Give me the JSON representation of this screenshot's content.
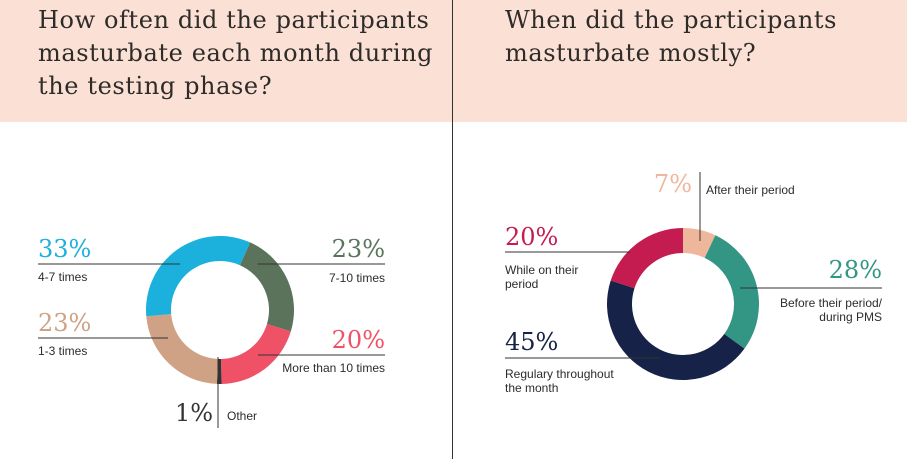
{
  "colors": {
    "band": "#fbe0d5",
    "text": "#2e2b29",
    "blue": "#1cb0dc",
    "green": "#5a735a",
    "pink": "#ef5267",
    "tan": "#cfa286",
    "dark": "#333333",
    "peach": "#eeb79c",
    "teal": "#339584",
    "navy": "#172248",
    "crimson": "#c41c50"
  },
  "chart_data": [
    {
      "type": "pie",
      "donut": true,
      "title": "How often did the participants masturbate each month during the testing phase?",
      "slices": [
        {
          "label": "7-10 times",
          "value": 23,
          "display": "23%"
        },
        {
          "label": "More than 10 times",
          "value": 20,
          "display": "20%"
        },
        {
          "label": "Other",
          "value": 1,
          "display": "1%"
        },
        {
          "label": "1-3 times",
          "value": 23,
          "display": "23%"
        },
        {
          "label": "4-7 times",
          "value": 33,
          "display": "33%"
        }
      ]
    },
    {
      "type": "pie",
      "donut": true,
      "title": "When did the participants masturbate mostly?",
      "slices": [
        {
          "label": "After their period",
          "value": 7,
          "display": "7%"
        },
        {
          "label": "Before their period/ during PMS",
          "value": 28,
          "display": "28%"
        },
        {
          "label": "Regulary throughout the month",
          "value": 45,
          "display": "45%"
        },
        {
          "label": "While on their period",
          "value": 20,
          "display": "20%"
        }
      ]
    }
  ]
}
